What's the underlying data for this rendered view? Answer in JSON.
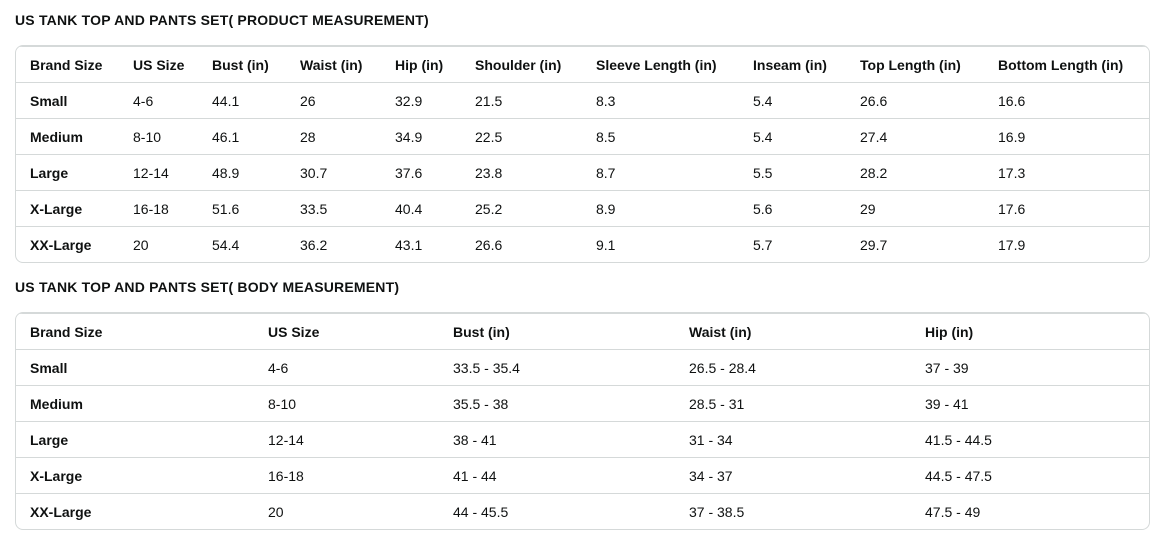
{
  "tables": [
    {
      "title": "US TANK TOP AND PANTS SET( PRODUCT MEASUREMENT)",
      "headers": [
        "Brand Size",
        "US Size",
        "Bust (in)",
        "Waist (in)",
        "Hip (in)",
        "Shoulder (in)",
        "Sleeve Length (in)",
        "Inseam (in)",
        "Top Length (in)",
        "Bottom Length (in)"
      ],
      "rows": [
        [
          "Small",
          "4-6",
          "44.1",
          "26",
          "32.9",
          "21.5",
          "8.3",
          "5.4",
          "26.6",
          "16.6"
        ],
        [
          "Medium",
          "8-10",
          "46.1",
          "28",
          "34.9",
          "22.5",
          "8.5",
          "5.4",
          "27.4",
          "16.9"
        ],
        [
          "Large",
          "12-14",
          "48.9",
          "30.7",
          "37.6",
          "23.8",
          "8.7",
          "5.5",
          "28.2",
          "17.3"
        ],
        [
          "X-Large",
          "16-18",
          "51.6",
          "33.5",
          "40.4",
          "25.2",
          "8.9",
          "5.6",
          "29",
          "17.6"
        ],
        [
          "XX-Large",
          "20",
          "54.4",
          "36.2",
          "43.1",
          "26.6",
          "9.1",
          "5.7",
          "29.7",
          "17.9"
        ]
      ]
    },
    {
      "title": "US TANK TOP AND PANTS SET( BODY MEASUREMENT)",
      "headers": [
        "Brand Size",
        "US Size",
        "Bust (in)",
        "Waist (in)",
        "Hip (in)"
      ],
      "rows": [
        [
          "Small",
          "4-6",
          "33.5 - 35.4",
          "26.5 - 28.4",
          "37 - 39"
        ],
        [
          "Medium",
          "8-10",
          "35.5 - 38",
          "28.5 - 31",
          "39 - 41"
        ],
        [
          "Large",
          "12-14",
          "38 - 41",
          "31 - 34",
          "41.5 - 44.5"
        ],
        [
          "X-Large",
          "16-18",
          "41 - 44",
          "34 - 37",
          "44.5 - 47.5"
        ],
        [
          "XX-Large",
          "20",
          "44 - 45.5",
          "37 - 38.5",
          "47.5 - 49"
        ]
      ]
    }
  ]
}
